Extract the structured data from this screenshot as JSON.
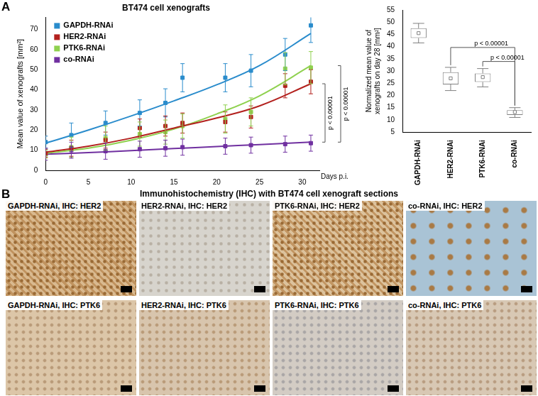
{
  "panel_labels": [
    "A",
    "B"
  ],
  "chart_data": [
    {
      "type": "line",
      "title": "BT474 cell xenografts",
      "y_label": "Mean value of xenografts [mm²]",
      "x_label": "Days p.i.",
      "x": [
        0,
        3,
        7,
        11,
        14,
        16,
        21,
        24,
        28,
        31
      ],
      "fit_x": [
        0,
        5,
        10,
        15,
        20,
        25,
        31
      ],
      "series": [
        {
          "name": "GAPDH-RNAi",
          "color": "#2a8ccc",
          "marker": "square",
          "values": [
            14,
            17.5,
            23.5,
            28.5,
            33.5,
            46,
            46,
            49.5,
            57.5,
            72
          ],
          "errors": [
            3,
            6,
            6,
            6.5,
            7,
            7,
            7,
            8,
            8,
            8.5
          ],
          "fit": [
            13.5,
            20,
            27,
            34.5,
            42.5,
            52,
            68
          ]
        },
        {
          "name": "HER2-RNAi",
          "color": "#b3211e",
          "marker": "square",
          "values": [
            8.5,
            11,
            15,
            21,
            22,
            23.5,
            24,
            26.5,
            42,
            44
          ],
          "errors": [
            2,
            4,
            4,
            4.5,
            5,
            5,
            5,
            5.5,
            6,
            6
          ],
          "fit": [
            9,
            12,
            16,
            21,
            26,
            32,
            43
          ]
        },
        {
          "name": "PTK6-RNAi",
          "color": "#8fd14f",
          "marker": "square",
          "values": [
            8,
            11.5,
            16,
            18,
            19,
            22,
            25.5,
            29,
            50.5,
            51
          ],
          "errors": [
            2,
            5,
            6,
            6,
            6,
            6,
            7,
            7,
            8,
            8
          ],
          "fit": [
            8.5,
            11,
            15,
            20.5,
            28,
            37,
            52
          ]
        },
        {
          "name": "co-RNAi",
          "color": "#7030a0",
          "marker": "square",
          "values": [
            8,
            10,
            9.5,
            10.5,
            11,
            11.5,
            12,
            12.5,
            13,
            13.5
          ],
          "errors": [
            3,
            4,
            4,
            4,
            4,
            4,
            4,
            4,
            4,
            4
          ],
          "fit": [
            8,
            8.8,
            9.8,
            10.8,
            11.8,
            12.8,
            14
          ]
        }
      ],
      "xlim": [
        0,
        32
      ],
      "xticks": [
        0,
        5,
        10,
        15,
        20,
        25,
        30
      ],
      "ylim": [
        0,
        76
      ],
      "yticks": [
        0,
        10,
        20,
        30,
        40,
        50,
        60,
        70
      ],
      "grid": false,
      "legend": "upper left",
      "annotations": [
        {
          "text": "p < 0.00001",
          "between": [
            "HER2-RNAi",
            "co-RNAi"
          ]
        },
        {
          "text": "p < 0.00001",
          "between": [
            "PTK6-RNAi",
            "co-RNAi"
          ]
        }
      ]
    },
    {
      "type": "box",
      "y_label": [
        "Normalized mean value of",
        "xenografts on day 28 [mm²]"
      ],
      "categories": [
        "GAPDH-RNAi",
        "HER2-RNAi",
        "PTK6-RNAi",
        "co-RNAi"
      ],
      "color": "#808080",
      "whisker_low": [
        41.5,
        22,
        23.5,
        11
      ],
      "q1": [
        43.5,
        24.5,
        25.5,
        12
      ],
      "mean": [
        45.5,
        27,
        27.5,
        13.2
      ],
      "q3": [
        47.5,
        29.5,
        29,
        14
      ],
      "whisker_high": [
        49.5,
        31.5,
        31,
        15
      ],
      "ylim": [
        5,
        55
      ],
      "yticks": [
        5,
        10,
        15,
        20,
        25,
        30,
        35,
        40,
        45,
        50,
        55
      ],
      "grid": false,
      "annotations": [
        {
          "text": "p < 0.00001",
          "between": [
            "HER2-RNAi",
            "co-RNAi"
          ]
        },
        {
          "text": "p < 0.00001",
          "between": [
            "PTK6-RNAi",
            "co-RNAi"
          ]
        }
      ]
    }
  ],
  "images": {
    "title": "Immunohistochemistry (IHC) with BT474 cell xenograft sections",
    "panels": [
      "GAPDH-RNAi, IHC: HER2",
      "HER2-RNAi, IHC: HER2",
      "PTK6-RNAi, IHC: HER2",
      "co-RNAi, IHC: HER2",
      "GAPDH-RNAi, IHC: PTK6",
      "HER2-RNAi, IHC: PTK6",
      "PTK6-RNAi, IHC: PTK6",
      "co-RNAi, IHC: PTK6"
    ]
  }
}
